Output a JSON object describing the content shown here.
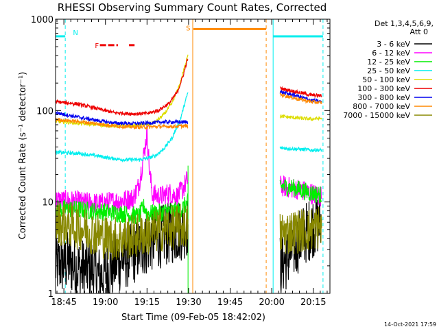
{
  "chart_data": {
    "type": "line",
    "title": "RHESSI Observing Summary Count Rates, Corrected",
    "xlabel": "Start Time (09-Feb-05 18:42:02)",
    "ylabel": "Corrected Count Rate (s⁻¹ detector⁻¹)",
    "y_scale": "log",
    "ylim": [
      1,
      1000
    ],
    "xlim_minutes_after_1845": [
      -3,
      96
    ],
    "x_tick_labels": [
      "18:45",
      "19:00",
      "19:15",
      "19:30",
      "19:45",
      "20:00",
      "20:15"
    ],
    "x_tick_minutes": [
      0,
      15,
      30,
      45,
      60,
      75,
      90
    ],
    "y_tick_labels": [
      "1",
      "10",
      "100",
      "1000"
    ],
    "y_tick_values": [
      1,
      10,
      100,
      1000
    ],
    "legend": {
      "header": [
        "Det 1,3,4,5,6,9,",
        "Att 0"
      ],
      "entries": [
        {
          "label": "3 - 6 keV",
          "color": "#000000"
        },
        {
          "label": "6 - 12 keV",
          "color": "#ff00ff"
        },
        {
          "label": "12 - 25 keV",
          "color": "#00ee00"
        },
        {
          "label": "25 - 50 keV",
          "color": "#00eeee"
        },
        {
          "label": "50 - 100 keV",
          "color": "#dddd00"
        },
        {
          "label": "100 - 300 keV",
          "color": "#ee0000"
        },
        {
          "label": "300 - 800 keV",
          "color": "#0000ee"
        },
        {
          "label": "800 - 7000 keV",
          "color": "#ff8800"
        },
        {
          "label": "7000 - 15000 keV",
          "color": "#888800"
        }
      ]
    },
    "series": [
      {
        "name": "3 - 6 keV",
        "color": "#000000",
        "noise": 0.35,
        "segments": [
          [
            [
              -3,
              2.0
            ],
            [
              2,
              2.2
            ],
            [
              6,
              1.8
            ],
            [
              10,
              1.9
            ],
            [
              13,
              1.5
            ],
            [
              16,
              1.8
            ],
            [
              19,
              2.2
            ],
            [
              23,
              2.5
            ],
            [
              27,
              3.0
            ],
            [
              30,
              3.5
            ],
            [
              33,
              4.0
            ],
            [
              36,
              4.3
            ],
            [
              40,
              4.7
            ],
            [
              43,
              5.1
            ],
            [
              44.8,
              5.5
            ]
          ],
          [
            [
              78,
              2.0
            ],
            [
              81,
              2.5
            ],
            [
              84,
              3.5
            ],
            [
              87,
              4.5
            ],
            [
              90,
              5.5
            ],
            [
              93,
              6.0
            ]
          ]
        ]
      },
      {
        "name": "6 - 12 keV",
        "color": "#ff00ff",
        "noise": 0.12,
        "segments": [
          [
            [
              -3,
              10.5
            ],
            [
              3,
              10.2
            ],
            [
              8,
              9.8
            ],
            [
              13,
              9.6
            ],
            [
              17,
              10.0
            ],
            [
              22,
              10.5
            ],
            [
              25,
              11.0
            ],
            [
              27,
              15.0
            ],
            [
              29,
              35.0
            ],
            [
              30,
              58.0
            ],
            [
              31,
              20.0
            ],
            [
              32,
              12.0
            ],
            [
              35,
              11.5
            ],
            [
              38,
              12.5
            ],
            [
              41,
              11.5
            ],
            [
              43,
              14.0
            ],
            [
              44.8,
              18.0
            ]
          ],
          [
            [
              78,
              15.0
            ],
            [
              84,
              14.0
            ],
            [
              89,
              12.5
            ],
            [
              93,
              11.5
            ]
          ]
        ]
      },
      {
        "name": "12 - 25 keV",
        "color": "#00ee00",
        "noise": 0.1,
        "segments": [
          [
            [
              -3,
              8.5
            ],
            [
              5,
              8.3
            ],
            [
              10,
              8.0
            ],
            [
              15,
              7.8
            ],
            [
              20,
              7.5
            ],
            [
              25,
              7.2
            ],
            [
              27,
              7.0
            ],
            [
              29,
              9.0
            ],
            [
              30,
              7.5
            ],
            [
              33,
              7.5
            ],
            [
              38,
              8.0
            ],
            [
              42,
              8.0
            ],
            [
              44.8,
              10.0
            ]
          ],
          [
            [
              78,
              15.0
            ],
            [
              84,
              14.0
            ],
            [
              89,
              12.5
            ],
            [
              93,
              12.0
            ]
          ]
        ]
      },
      {
        "name": "25 - 50 keV",
        "color": "#00eeee",
        "noise": 0.02,
        "segments": [
          [
            [
              -3,
              35.0
            ],
            [
              5,
              34.0
            ],
            [
              12,
              32.0
            ],
            [
              17,
              30.0
            ],
            [
              22,
              29.0
            ],
            [
              27,
              29.0
            ],
            [
              30,
              30.0
            ],
            [
              33,
              32.0
            ],
            [
              36,
              38.0
            ],
            [
              39,
              50.0
            ],
            [
              42,
              80.0
            ],
            [
              44.8,
              160.0
            ]
          ],
          [
            [
              78,
              39.0
            ],
            [
              84,
              38.0
            ],
            [
              89,
              37.0
            ],
            [
              93,
              37.0
            ]
          ]
        ]
      },
      {
        "name": "50 - 100 keV",
        "color": "#dddd00",
        "noise": 0.02,
        "segments": [
          [
            [
              -3,
              76.0
            ],
            [
              5,
              73.0
            ],
            [
              12,
              70.0
            ],
            [
              18,
              68.0
            ],
            [
              25,
              68.0
            ],
            [
              30,
              70.0
            ],
            [
              33,
              75.0
            ],
            [
              36,
              90.0
            ],
            [
              39,
              120.0
            ],
            [
              42,
              200.0
            ],
            [
              44.8,
              420.0
            ]
          ],
          [
            [
              78,
              87.0
            ],
            [
              84,
              83.0
            ],
            [
              89,
              81.0
            ],
            [
              93,
              82.0
            ]
          ]
        ]
      },
      {
        "name": "100 - 300 keV",
        "color": "#ee0000",
        "noise": 0.02,
        "segments": [
          [
            [
              -3,
              125.0
            ],
            [
              5,
              118.0
            ],
            [
              12,
              105.0
            ],
            [
              18,
              95.0
            ],
            [
              25,
              92.0
            ],
            [
              30,
              93.0
            ],
            [
              34,
              100.0
            ],
            [
              38,
              120.0
            ],
            [
              41,
              160.0
            ],
            [
              43,
              240.0
            ],
            [
              44.8,
              380.0
            ]
          ],
          [
            [
              78,
              175.0
            ],
            [
              84,
              160.0
            ],
            [
              89,
              148.0
            ],
            [
              93,
              145.0
            ]
          ]
        ]
      },
      {
        "name": "300 - 800 keV",
        "color": "#0000ee",
        "noise": 0.02,
        "segments": [
          [
            [
              -3,
              95.0
            ],
            [
              5,
              85.0
            ],
            [
              12,
              78.0
            ],
            [
              18,
              73.0
            ],
            [
              25,
              72.0
            ],
            [
              30,
              73.0
            ],
            [
              35,
              75.0
            ],
            [
              40,
              75.0
            ],
            [
              44.8,
              75.0
            ]
          ],
          [
            [
              78,
              160.0
            ],
            [
              84,
              145.0
            ],
            [
              89,
              130.0
            ],
            [
              93,
              125.0
            ]
          ]
        ]
      },
      {
        "name": "800 - 7000 keV",
        "color": "#ff8800",
        "noise": 0.02,
        "segments": [
          [
            [
              -3,
              80.0
            ],
            [
              5,
              76.0
            ],
            [
              12,
              72.0
            ],
            [
              18,
              68.0
            ],
            [
              25,
              66.0
            ],
            [
              30,
              66.0
            ],
            [
              35,
              67.0
            ],
            [
              40,
              67.0
            ],
            [
              44.8,
              68.0
            ]
          ],
          [
            [
              78,
              150.0
            ],
            [
              84,
              135.0
            ],
            [
              89,
              125.0
            ],
            [
              93,
              122.0
            ]
          ]
        ]
      },
      {
        "name": "7000 - 15000 keV",
        "color": "#888800",
        "noise": 0.25,
        "segments": [
          [
            [
              -3,
              6.0
            ],
            [
              3,
              5.5
            ],
            [
              8,
              5.0
            ],
            [
              12,
              4.5
            ],
            [
              16,
              4.0
            ],
            [
              20,
              4.0
            ],
            [
              25,
              4.2
            ],
            [
              30,
              4.5
            ],
            [
              35,
              5.0
            ],
            [
              40,
              5.3
            ],
            [
              44.8,
              5.5
            ]
          ],
          [
            [
              78,
              4.5
            ],
            [
              84,
              4.8
            ],
            [
              89,
              5.0
            ],
            [
              93,
              5.5
            ]
          ]
        ]
      }
    ],
    "night_periods": [
      {
        "start": -3,
        "end": 0.5,
        "color": "#00eeee"
      },
      {
        "start": 75.5,
        "end": 93.5,
        "color": "#00eeee"
      }
    ],
    "saa_period": {
      "start": 46.5,
      "end": 73,
      "color": "#ff8800"
    },
    "flare_markers": [
      {
        "start": 13,
        "end": 19.5
      },
      {
        "start": 23.5,
        "end": 25.5
      }
    ],
    "flare_color": "#ee0000",
    "vertical_lines": [
      {
        "x": 44.8,
        "color": "#00ee00"
      },
      {
        "x": 46.5,
        "color": "#ff8800"
      }
    ],
    "markers": {
      "night_label": "N",
      "night_label_x": 1.8,
      "flare_label": "F",
      "flare_label_x": 11.2,
      "saa_label": "S",
      "saa_label_x": 44.8
    },
    "bar_levels": {
      "night": 650,
      "saa": 780,
      "flare": 520
    },
    "timestamp": "14-Oct-2021 17:59"
  }
}
